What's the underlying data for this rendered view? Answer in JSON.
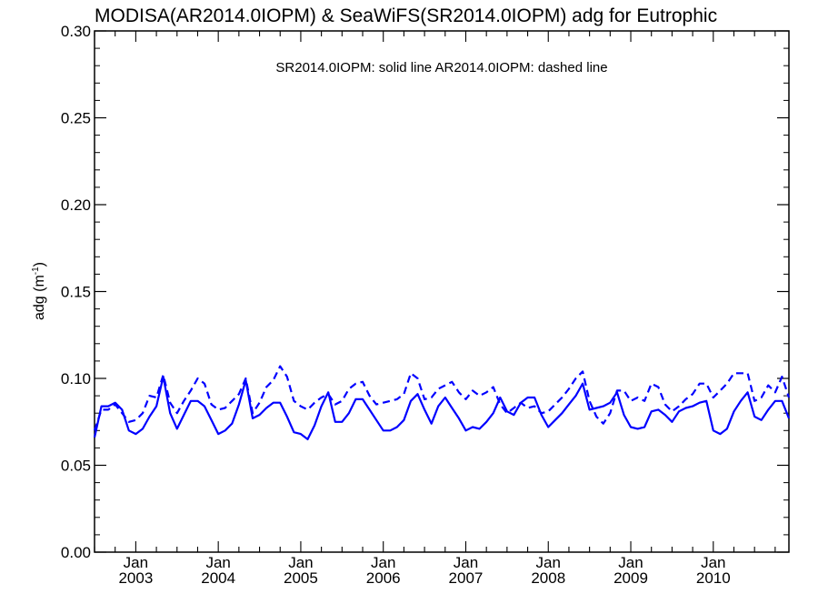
{
  "chart_data": {
    "type": "line",
    "title": "MODISA(AR2014.0IOPM) & SeaWiFS(SR2014.0IOPM)  adg for Eutrophic",
    "annotation": "SR2014.0IOPM: solid line   AR2014.0IOPM: dashed line",
    "ylabel": "adg (m",
    "ylabel_sup": "-1",
    "ylabel_close": ")",
    "ylim": [
      0.0,
      0.3
    ],
    "xlim": [
      "2002-07",
      "2010-12"
    ],
    "yticks": [
      "0.00",
      "0.05",
      "0.10",
      "0.15",
      "0.20",
      "0.25",
      "0.30"
    ],
    "xticks": [
      {
        "month": "Jan",
        "year": "2003"
      },
      {
        "month": "Jan",
        "year": "2004"
      },
      {
        "month": "Jan",
        "year": "2005"
      },
      {
        "month": "Jan",
        "year": "2006"
      },
      {
        "month": "Jan",
        "year": "2007"
      },
      {
        "month": "Jan",
        "year": "2008"
      },
      {
        "month": "Jan",
        "year": "2009"
      },
      {
        "month": "Jan",
        "year": "2010"
      }
    ],
    "grid": false,
    "series": [
      {
        "name": "SR2014.0IOPM",
        "style": "solid",
        "color": "#0000ff",
        "points": [
          [
            "2002-07",
            0.066
          ],
          [
            "2002-08",
            0.084
          ],
          [
            "2002-09",
            0.084
          ],
          [
            "2002-10",
            0.086
          ],
          [
            "2002-11",
            0.082
          ],
          [
            "2002-12",
            0.07
          ],
          [
            "2003-01",
            0.068
          ],
          [
            "2003-02",
            0.071
          ],
          [
            "2003-03",
            0.078
          ],
          [
            "2003-04",
            0.084
          ],
          [
            "2003-05",
            0.101
          ],
          [
            "2003-06",
            0.08
          ],
          [
            "2003-07",
            0.071
          ],
          [
            "2003-08",
            0.079
          ],
          [
            "2003-09",
            0.087
          ],
          [
            "2003-10",
            0.087
          ],
          [
            "2003-11",
            0.084
          ],
          [
            "2003-12",
            0.076
          ],
          [
            "2004-01",
            0.068
          ],
          [
            "2004-02",
            0.07
          ],
          [
            "2004-03",
            0.074
          ],
          [
            "2004-04",
            0.085
          ],
          [
            "2004-05",
            0.099
          ],
          [
            "2004-06",
            0.077
          ],
          [
            "2004-07",
            0.079
          ],
          [
            "2004-08",
            0.083
          ],
          [
            "2004-09",
            0.086
          ],
          [
            "2004-10",
            0.086
          ],
          [
            "2004-11",
            0.078
          ],
          [
            "2004-12",
            0.069
          ],
          [
            "2005-01",
            0.068
          ],
          [
            "2005-02",
            0.065
          ],
          [
            "2005-03",
            0.073
          ],
          [
            "2005-04",
            0.084
          ],
          [
            "2005-05",
            0.092
          ],
          [
            "2005-06",
            0.075
          ],
          [
            "2005-07",
            0.075
          ],
          [
            "2005-08",
            0.08
          ],
          [
            "2005-09",
            0.088
          ],
          [
            "2005-10",
            0.088
          ],
          [
            "2005-11",
            0.082
          ],
          [
            "2005-12",
            0.076
          ],
          [
            "2006-01",
            0.07
          ],
          [
            "2006-02",
            0.07
          ],
          [
            "2006-03",
            0.072
          ],
          [
            "2006-04",
            0.076
          ],
          [
            "2006-05",
            0.087
          ],
          [
            "2006-06",
            0.091
          ],
          [
            "2006-07",
            0.082
          ],
          [
            "2006-08",
            0.074
          ],
          [
            "2006-09",
            0.084
          ],
          [
            "2006-10",
            0.089
          ],
          [
            "2006-11",
            0.083
          ],
          [
            "2006-12",
            0.077
          ],
          [
            "2007-01",
            0.07
          ],
          [
            "2007-02",
            0.072
          ],
          [
            "2007-03",
            0.071
          ],
          [
            "2007-04",
            0.075
          ],
          [
            "2007-05",
            0.08
          ],
          [
            "2007-06",
            0.089
          ],
          [
            "2007-07",
            0.081
          ],
          [
            "2007-08",
            0.079
          ],
          [
            "2007-09",
            0.086
          ],
          [
            "2007-10",
            0.089
          ],
          [
            "2007-11",
            0.089
          ],
          [
            "2007-12",
            0.079
          ],
          [
            "2008-01",
            0.072
          ],
          [
            "2008-02",
            0.076
          ],
          [
            "2008-03",
            0.08
          ],
          [
            "2008-04",
            0.085
          ],
          [
            "2008-05",
            0.09
          ],
          [
            "2008-06",
            0.097
          ],
          [
            "2008-07",
            0.082
          ],
          [
            "2008-08",
            0.083
          ],
          [
            "2008-09",
            0.084
          ],
          [
            "2008-10",
            0.086
          ],
          [
            "2008-11",
            0.092
          ],
          [
            "2008-12",
            0.079
          ],
          [
            "2009-01",
            0.072
          ],
          [
            "2009-02",
            0.071
          ],
          [
            "2009-03",
            0.072
          ],
          [
            "2009-04",
            0.081
          ],
          [
            "2009-05",
            0.082
          ],
          [
            "2009-06",
            0.079
          ],
          [
            "2009-07",
            0.075
          ],
          [
            "2009-08",
            0.081
          ],
          [
            "2009-09",
            0.083
          ],
          [
            "2009-10",
            0.084
          ],
          [
            "2009-11",
            0.086
          ],
          [
            "2009-12",
            0.087
          ],
          [
            "2010-01",
            0.07
          ],
          [
            "2010-02",
            0.068
          ],
          [
            "2010-03",
            0.071
          ],
          [
            "2010-04",
            0.081
          ],
          [
            "2010-05",
            0.087
          ],
          [
            "2010-06",
            0.092
          ],
          [
            "2010-07",
            0.078
          ],
          [
            "2010-08",
            0.076
          ],
          [
            "2010-09",
            0.082
          ],
          [
            "2010-10",
            0.087
          ],
          [
            "2010-11",
            0.087
          ],
          [
            "2010-12",
            0.077
          ]
        ]
      },
      {
        "name": "AR2014.0IOPM",
        "style": "dashed",
        "color": "#0000ff",
        "points": [
          [
            "2002-07",
            0.07
          ],
          [
            "2002-08",
            0.082
          ],
          [
            "2002-09",
            0.082
          ],
          [
            "2002-10",
            0.085
          ],
          [
            "2002-11",
            0.08
          ],
          [
            "2002-12",
            0.075
          ],
          [
            "2003-01",
            0.076
          ],
          [
            "2003-02",
            0.08
          ],
          [
            "2003-03",
            0.09
          ],
          [
            "2003-04",
            0.089
          ],
          [
            "2003-05",
            0.102
          ],
          [
            "2003-06",
            0.086
          ],
          [
            "2003-07",
            0.08
          ],
          [
            "2003-08",
            0.087
          ],
          [
            "2003-09",
            0.093
          ],
          [
            "2003-10",
            0.1
          ],
          [
            "2003-11",
            0.097
          ],
          [
            "2003-12",
            0.085
          ],
          [
            "2004-01",
            0.082
          ],
          [
            "2004-02",
            0.083
          ],
          [
            "2004-03",
            0.087
          ],
          [
            "2004-04",
            0.091
          ],
          [
            "2004-05",
            0.1
          ],
          [
            "2004-06",
            0.08
          ],
          [
            "2004-07",
            0.086
          ],
          [
            "2004-08",
            0.095
          ],
          [
            "2004-09",
            0.099
          ],
          [
            "2004-10",
            0.107
          ],
          [
            "2004-11",
            0.101
          ],
          [
            "2004-12",
            0.087
          ],
          [
            "2005-01",
            0.084
          ],
          [
            "2005-02",
            0.082
          ],
          [
            "2005-03",
            0.086
          ],
          [
            "2005-04",
            0.089
          ],
          [
            "2005-05",
            0.091
          ],
          [
            "2005-06",
            0.085
          ],
          [
            "2005-07",
            0.087
          ],
          [
            "2005-08",
            0.094
          ],
          [
            "2005-09",
            0.097
          ],
          [
            "2005-10",
            0.098
          ],
          [
            "2005-11",
            0.09
          ],
          [
            "2005-12",
            0.085
          ],
          [
            "2006-01",
            0.086
          ],
          [
            "2006-02",
            0.087
          ],
          [
            "2006-03",
            0.088
          ],
          [
            "2006-04",
            0.091
          ],
          [
            "2006-05",
            0.103
          ],
          [
            "2006-06",
            0.1
          ],
          [
            "2006-07",
            0.088
          ],
          [
            "2006-08",
            0.089
          ],
          [
            "2006-09",
            0.094
          ],
          [
            "2006-10",
            0.096
          ],
          [
            "2006-11",
            0.098
          ],
          [
            "2006-12",
            0.092
          ],
          [
            "2007-01",
            0.088
          ],
          [
            "2007-02",
            0.093
          ],
          [
            "2007-03",
            0.09
          ],
          [
            "2007-04",
            0.092
          ],
          [
            "2007-05",
            0.095
          ],
          [
            "2007-06",
            0.085
          ],
          [
            "2007-07",
            0.08
          ],
          [
            "2007-08",
            0.083
          ],
          [
            "2007-09",
            0.086
          ],
          [
            "2007-10",
            0.083
          ],
          [
            "2007-11",
            0.084
          ],
          [
            "2007-12",
            0.08
          ],
          [
            "2008-01",
            0.081
          ],
          [
            "2008-02",
            0.085
          ],
          [
            "2008-03",
            0.089
          ],
          [
            "2008-04",
            0.094
          ],
          [
            "2008-05",
            0.1
          ],
          [
            "2008-06",
            0.104
          ],
          [
            "2008-07",
            0.087
          ],
          [
            "2008-08",
            0.078
          ],
          [
            "2008-09",
            0.074
          ],
          [
            "2008-10",
            0.08
          ],
          [
            "2008-11",
            0.093
          ],
          [
            "2008-12",
            0.093
          ],
          [
            "2009-01",
            0.087
          ],
          [
            "2009-02",
            0.089
          ],
          [
            "2009-03",
            0.087
          ],
          [
            "2009-04",
            0.097
          ],
          [
            "2009-05",
            0.095
          ],
          [
            "2009-06",
            0.085
          ],
          [
            "2009-07",
            0.081
          ],
          [
            "2009-08",
            0.084
          ],
          [
            "2009-09",
            0.088
          ],
          [
            "2009-10",
            0.091
          ],
          [
            "2009-11",
            0.097
          ],
          [
            "2009-12",
            0.097
          ],
          [
            "2010-01",
            0.089
          ],
          [
            "2010-02",
            0.093
          ],
          [
            "2010-03",
            0.097
          ],
          [
            "2010-04",
            0.103
          ],
          [
            "2010-05",
            0.103
          ],
          [
            "2010-06",
            0.103
          ],
          [
            "2010-07",
            0.087
          ],
          [
            "2010-08",
            0.089
          ],
          [
            "2010-09",
            0.096
          ],
          [
            "2010-10",
            0.092
          ],
          [
            "2010-11",
            0.101
          ],
          [
            "2010-12",
            0.089
          ]
        ]
      }
    ]
  }
}
